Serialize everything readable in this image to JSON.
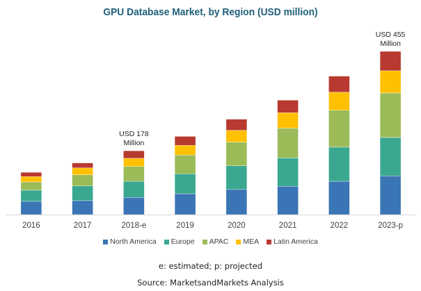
{
  "chart_data": {
    "type": "bar",
    "stacked": true,
    "title": "GPU Database Market, by Region (USD million)",
    "xlabel": "",
    "ylabel": "",
    "categories": [
      "2016",
      "2017",
      "2018-e",
      "2019",
      "2020",
      "2021",
      "2022",
      "2023-p"
    ],
    "series": [
      {
        "name": "North America",
        "color": "#3a75b5",
        "values": [
          37,
          39,
          48,
          58,
          70,
          79,
          93,
          108
        ]
      },
      {
        "name": "Europe",
        "color": "#3aa890",
        "values": [
          31,
          41,
          45,
          56,
          66,
          79,
          95,
          107
        ]
      },
      {
        "name": "APAC",
        "color": "#9bbb59",
        "values": [
          23,
          31,
          41,
          52,
          66,
          83,
          103,
          124
        ]
      },
      {
        "name": "MEA",
        "color": "#ffc000",
        "values": [
          15,
          19,
          23,
          27,
          33,
          43,
          50,
          62
        ]
      },
      {
        "name": "Latin America",
        "color": "#b8392f",
        "values": [
          12,
          14,
          21,
          25,
          31,
          35,
          45,
          54
        ]
      }
    ],
    "ylim": [
      0,
      455
    ],
    "grid": false,
    "legend_position": "bottom",
    "annotations": [
      {
        "category": "2018-e",
        "lines": [
          "USD 178",
          "Million"
        ]
      },
      {
        "category": "2023-p",
        "lines": [
          "USD 455",
          "Million"
        ]
      }
    ]
  },
  "footnote": "e: estimated; p: projected",
  "source": "Source: MarketsandMarkets Analysis"
}
